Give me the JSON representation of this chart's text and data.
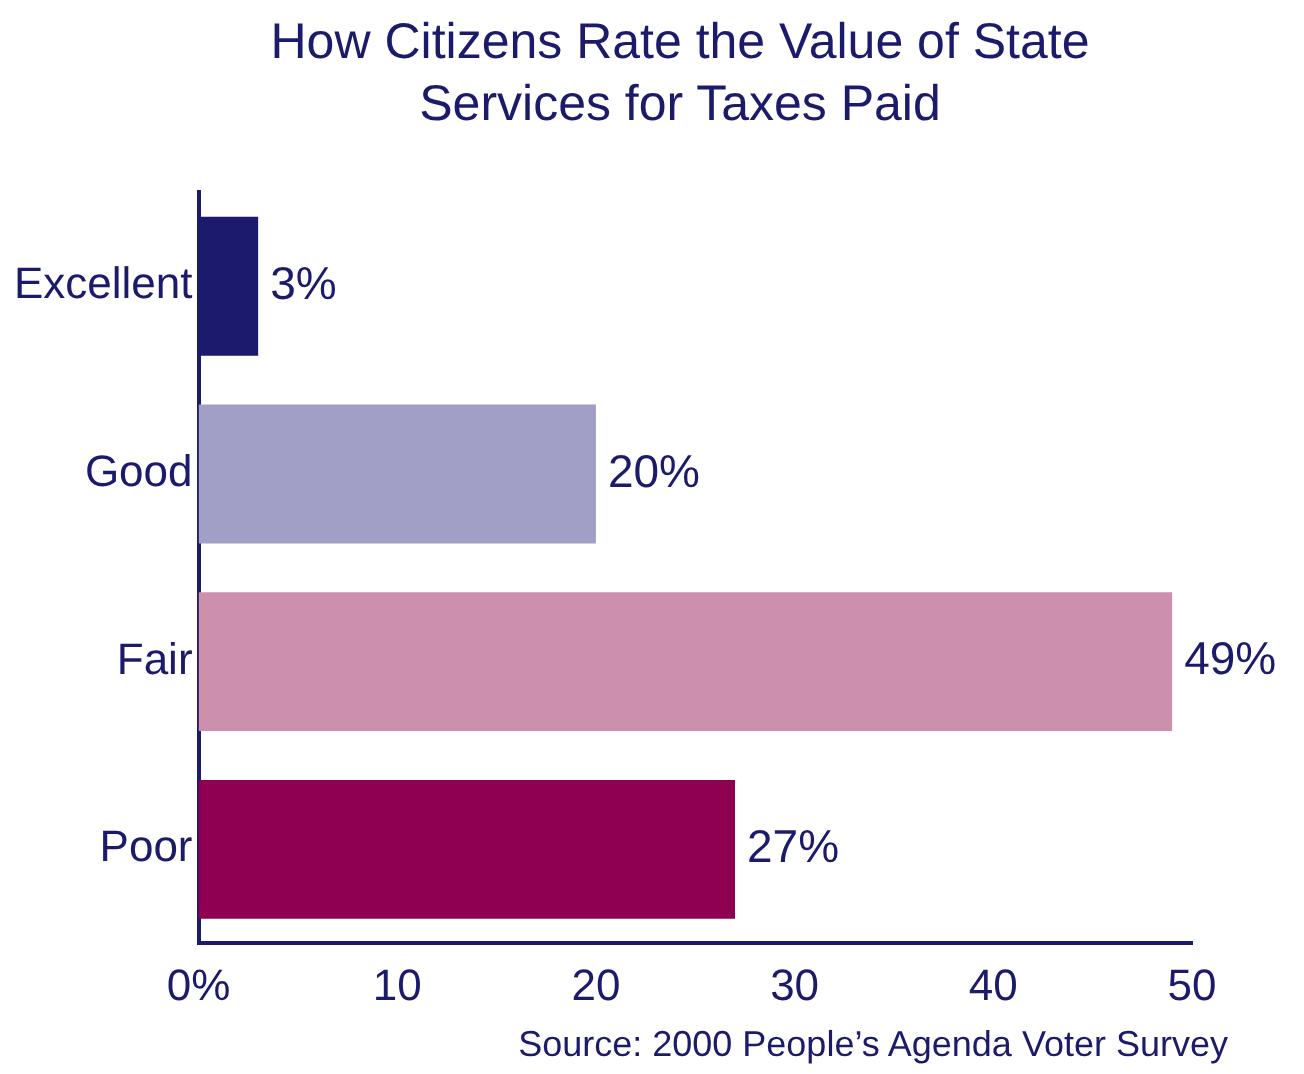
{
  "chart_data": {
    "type": "bar",
    "orientation": "horizontal",
    "title": "How Citizens Rate the Value of State Services for Taxes Paid",
    "categories": [
      "Excellent",
      "Good",
      "Fair",
      "Poor"
    ],
    "values": [
      3,
      20,
      49,
      27
    ],
    "colors": [
      "#1b1a6b",
      "#a19fc5",
      "#cc90ad",
      "#8f0052"
    ],
    "value_labels": [
      "3%",
      "20%",
      "49%",
      "27%"
    ],
    "xlim": [
      0,
      50
    ],
    "xticks": [
      {
        "value": 0,
        "label": "0%"
      },
      10,
      20,
      30,
      40,
      50
    ],
    "grid": false,
    "legend": false,
    "annotations": [
      "Source:  2000 People’s Agenda Voter Survey"
    ]
  }
}
